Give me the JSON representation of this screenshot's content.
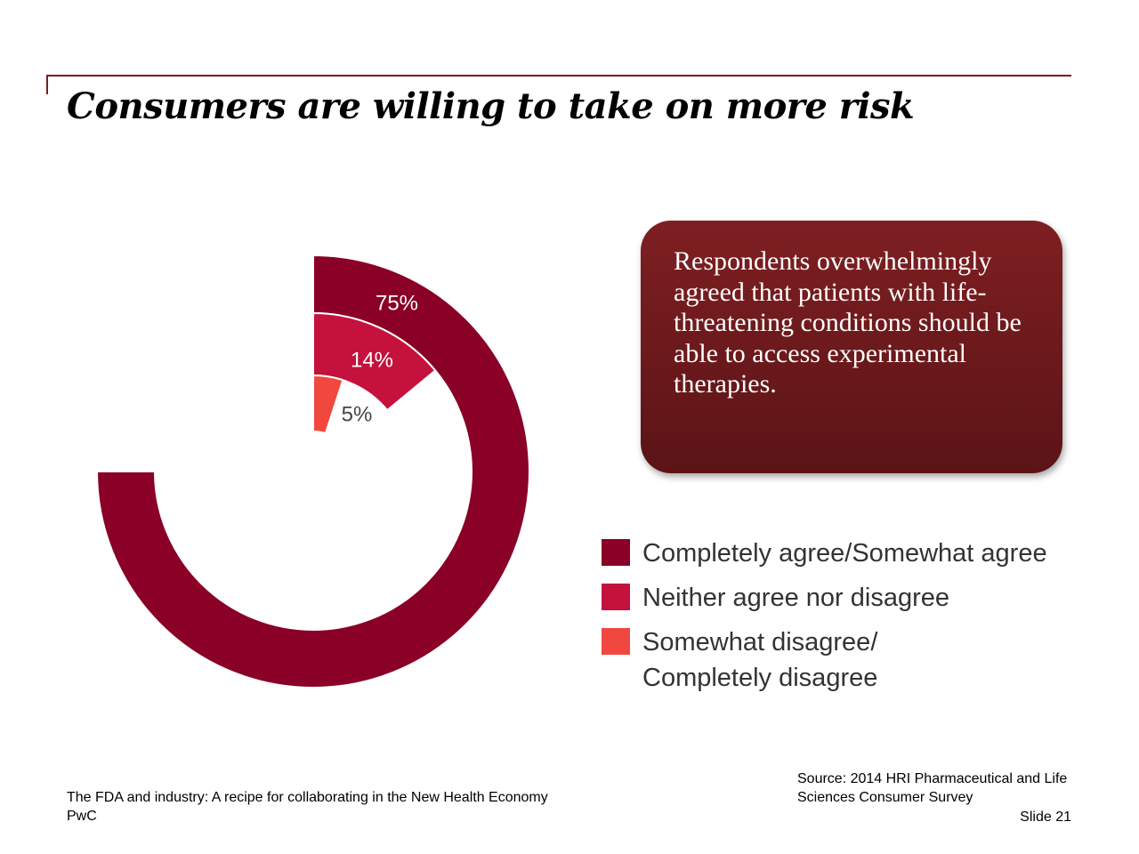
{
  "title": "Consumers are willing to take on more risk",
  "callout": "Respondents overwhelmingly agreed that patients with life-threatening conditions should be able to access experimental therapies.",
  "chart_data": {
    "type": "pie",
    "style": "radial-bar",
    "categories": [
      "Completely agree/Somewhat agree",
      "Neither agree nor disagree",
      "Somewhat disagree/ Completely disagree"
    ],
    "values": [
      75,
      14,
      5
    ],
    "value_labels": [
      "75%",
      "14%",
      "5%"
    ],
    "colors": [
      "#8a0026",
      "#c4123d",
      "#f0483e"
    ],
    "legend_position": "right"
  },
  "legend": [
    {
      "label": "Completely agree/Somewhat agree",
      "color": "#8a0026"
    },
    {
      "label": "Neither agree nor disagree",
      "color": "#c4123d"
    },
    {
      "label": "Somewhat disagree/ Completely disagree",
      "color": "#f0483e"
    }
  ],
  "footer": {
    "line1": "The FDA and industry: A recipe for collaborating in the New Health Economy",
    "line2": "PwC",
    "source": "Source: 2014 HRI Pharmaceutical and Life Sciences Consumer Survey",
    "slide": "Slide 21"
  }
}
